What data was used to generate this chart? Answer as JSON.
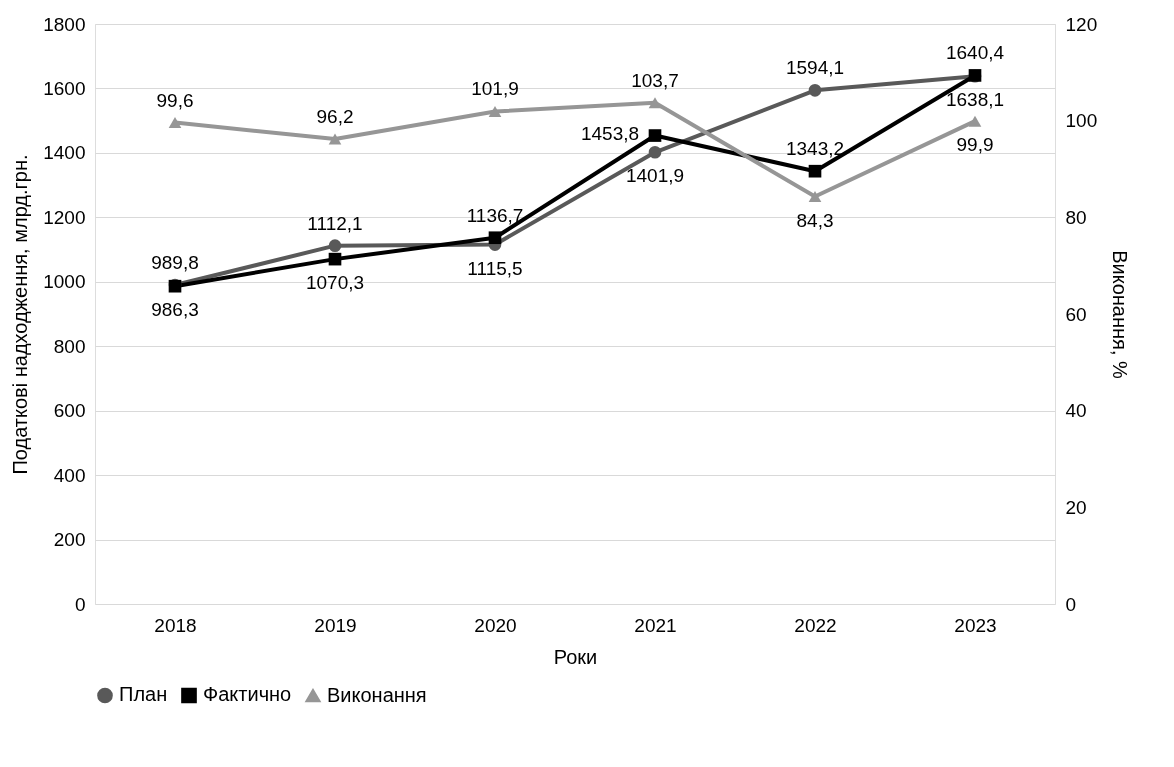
{
  "chart_data": {
    "type": "line",
    "xlabel": "Роки",
    "ylabel": "Податкові надходження, млрд.грн.",
    "y2label": "Виконання, %",
    "categories": [
      "2018",
      "2019",
      "2020",
      "2021",
      "2022",
      "2023"
    ],
    "series": [
      {
        "name": "План",
        "color": "#595959",
        "marker": "circle",
        "line_style": "solid",
        "values": [
          989.8,
          1112.1,
          1115.5,
          1401.9,
          1594.1,
          1638.1
        ],
        "value_labels": [
          "989,8",
          "1112,1",
          "1115,5",
          "1401,9",
          "1594,1",
          "1638,1"
        ]
      },
      {
        "name": "Фактично",
        "color": "#000000",
        "marker": "square",
        "line_style": "solid",
        "values": [
          986.3,
          1070.3,
          1136.7,
          1453.8,
          1343.2,
          1640.4
        ],
        "value_labels": [
          "986,3",
          "1070,3",
          "1136,7",
          "1453,8",
          "1343,2",
          "1640,4"
        ]
      },
      {
        "name": "Виконання",
        "color": "#969696",
        "marker": "triangle",
        "line_style": "solid",
        "axis": "y2",
        "values": [
          99.6,
          96.2,
          101.9,
          103.7,
          84.3,
          99.9
        ],
        "value_labels": [
          "99,6",
          "96,2",
          "101,9",
          "103,7",
          "84,3",
          "99,9"
        ]
      }
    ],
    "ylim": [
      0,
      1800
    ],
    "yticks": [
      0,
      200,
      400,
      600,
      800,
      1000,
      1200,
      1400,
      1600,
      1800
    ],
    "y2lim": [
      0,
      120
    ],
    "y2ticks": [
      0,
      20,
      40,
      60,
      80,
      100,
      120
    ],
    "grid": "y",
    "legend": "bottom"
  }
}
